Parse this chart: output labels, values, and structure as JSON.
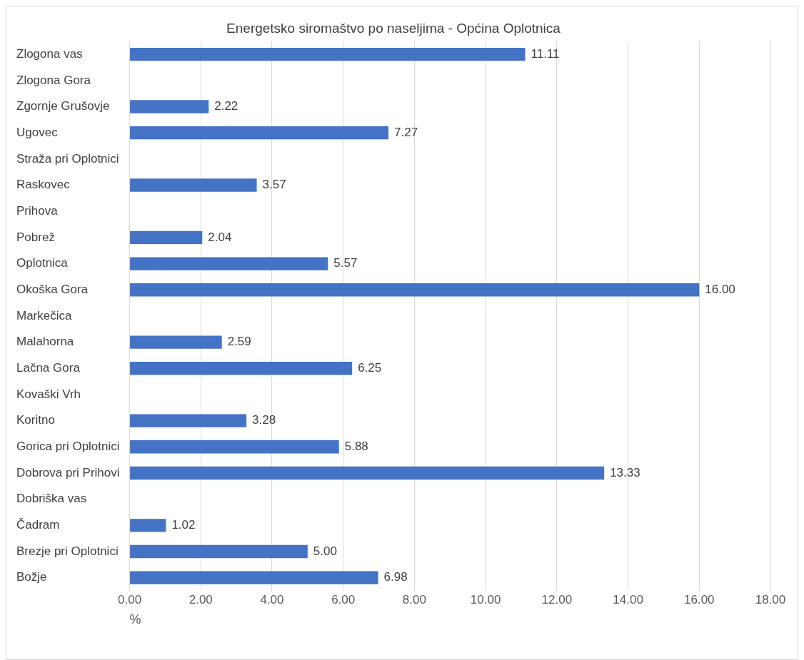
{
  "chart_data": {
    "type": "bar",
    "orientation": "horizontal",
    "title": "Energetsko siromaštvo po naseljima - Općina Oplotnica",
    "xlabel": "%",
    "categories": [
      "Zlogona vas",
      "Zlogona Gora",
      "Zgornje Grušovje",
      "Ugovec",
      "Straža pri Oplotnici",
      "Raskovec",
      "Prihova",
      "Pobrež",
      "Oplotnica",
      "Okoška Gora",
      "Markečica",
      "Malahorna",
      "Lačna Gora",
      "Kovaški Vrh",
      "Koritno",
      "Gorica pri Oplotnici",
      "Dobrova pri Prihovi",
      "Dobriška vas",
      "Čadram",
      "Brezje pri Oplotnici",
      "Božje"
    ],
    "values": [
      11.11,
      null,
      2.22,
      7.27,
      null,
      3.57,
      null,
      2.04,
      5.57,
      16.0,
      null,
      2.59,
      6.25,
      null,
      3.28,
      5.88,
      13.33,
      null,
      1.02,
      5.0,
      6.98
    ],
    "value_labels": [
      "11.11",
      null,
      "2.22",
      "7.27",
      null,
      "3.57",
      null,
      "2.04",
      "5.57",
      "16.00",
      null,
      "2.59",
      "6.25",
      null,
      "3.28",
      "5.88",
      "13.33",
      null,
      "1.02",
      "5.00",
      "6.98"
    ],
    "color": "#4472c4",
    "xlim": [
      0,
      18
    ],
    "xticks": [
      {
        "value": 0,
        "label": "0.00"
      },
      {
        "value": 2,
        "label": "2.00"
      },
      {
        "value": 4,
        "label": "4.00"
      },
      {
        "value": 6,
        "label": "6.00"
      },
      {
        "value": 8,
        "label": "8.00"
      },
      {
        "value": 10,
        "label": "10.00"
      },
      {
        "value": 12,
        "label": "12.00"
      },
      {
        "value": 14,
        "label": "14.00"
      },
      {
        "value": 16,
        "label": "16.00"
      },
      {
        "value": 18,
        "label": "18.00"
      }
    ],
    "grid": "x"
  }
}
